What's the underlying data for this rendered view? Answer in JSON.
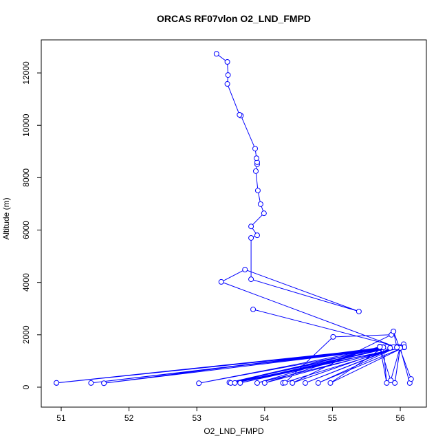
{
  "chart_data": {
    "type": "line",
    "title": "ORCAS RF07vlon O2_LND_FMPD",
    "x_label": "O2_LND_FMPD",
    "y_label": "Altitude (m)",
    "color": "#0000ff",
    "x": [
      53.83,
      56.0,
      50.93,
      56.05,
      50.93,
      55.95,
      51.44,
      56.0,
      51.63,
      55.8,
      53.03,
      55.9,
      53.48,
      55.75,
      53.5,
      56.06,
      53.56,
      55.85,
      53.64,
      56.05,
      53.89,
      55.7,
      54.0,
      56.0,
      54.27,
      54.3,
      55.01,
      55.87,
      54.41,
      56.05,
      54.6,
      55.95,
      54.79,
      56.06,
      54.97,
      55.75,
      55.8,
      55.7,
      55.86,
      56.0,
      55.92,
      56.0,
      56.14,
      56.16,
      55.9,
      55.95,
      53.36,
      53.71,
      55.39,
      53.8,
      53.8,
      53.89,
      53.8,
      53.99,
      53.94,
      53.9,
      53.87,
      53.89,
      53.89,
      53.88,
      53.86,
      53.65,
      53.63,
      53.45,
      53.46,
      53.45,
      53.29
    ],
    "values": [
      2970,
      1520,
      160,
      1530,
      165,
      1540,
      160,
      1520,
      150,
      1540,
      150,
      1530,
      180,
      1530,
      160,
      1520,
      160,
      1500,
      160,
      1530,
      160,
      1550,
      160,
      1530,
      160,
      170,
      1920,
      2000,
      160,
      1640,
      160,
      1520,
      160,
      1530,
      160,
      1520,
      160,
      1540,
      260,
      1540,
      160,
      1500,
      160,
      310,
      2130,
      1520,
      4020,
      4490,
      2890,
      4120,
      5700,
      5800,
      6140,
      6640,
      6990,
      7510,
      8250,
      8510,
      8590,
      8740,
      9110,
      10370,
      10400,
      11580,
      11920,
      12420,
      12730
    ],
    "xlim": [
      50.706,
      56.385
    ],
    "ylim": [
      -762,
      13262
    ],
    "xticks": [
      51,
      52,
      53,
      54,
      55,
      56
    ],
    "yticks": [
      0,
      2000,
      4000,
      6000,
      8000,
      10000,
      12000
    ]
  }
}
